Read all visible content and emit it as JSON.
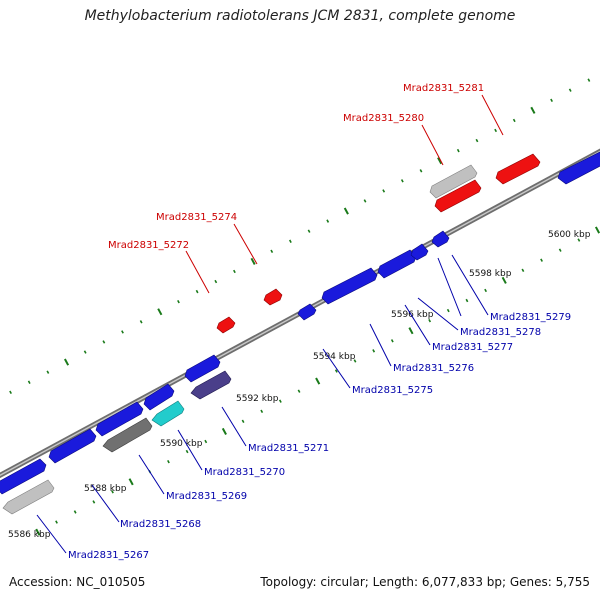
{
  "title": "Methylobacterium radiotolerans JCM 2831, complete genome",
  "footer": {
    "accession": "Accession: NC_010505",
    "summary": "Topology: circular; Length: 6,077,833 bp; Genes: 5,755"
  },
  "colors": {
    "backbone": "#888888",
    "tick": "#1a7a1a",
    "label_red": "#cc0000",
    "label_blue": "#0000aa",
    "gene_blue": "#1a1adc",
    "gene_red": "#ee1111",
    "gene_gray": "#c0c0c0",
    "gene_darkgray": "#707070",
    "gene_cyan": "#22cccc",
    "gene_navy": "#4a3f8a"
  },
  "tick_labels": [
    "5586 kbp",
    "5588 kbp",
    "5590 kbp",
    "5592 kbp",
    "5594 kbp",
    "5596 kbp",
    "5598 kbp",
    "5600 kbp"
  ],
  "genes_top": [
    {
      "label": "Mrad2831_5272"
    },
    {
      "label": "Mrad2831_5274"
    },
    {
      "label": "Mrad2831_5280"
    },
    {
      "label": "Mrad2831_5281"
    }
  ],
  "genes_bottom": [
    {
      "label": "Mrad2831_5267"
    },
    {
      "label": "Mrad2831_5268"
    },
    {
      "label": "Mrad2831_5269"
    },
    {
      "label": "Mrad2831_5270"
    },
    {
      "label": "Mrad2831_5271"
    },
    {
      "label": "Mrad2831_5275"
    },
    {
      "label": "Mrad2831_5276"
    },
    {
      "label": "Mrad2831_5277"
    },
    {
      "label": "Mrad2831_5278"
    },
    {
      "label": "Mrad2831_5279"
    }
  ]
}
